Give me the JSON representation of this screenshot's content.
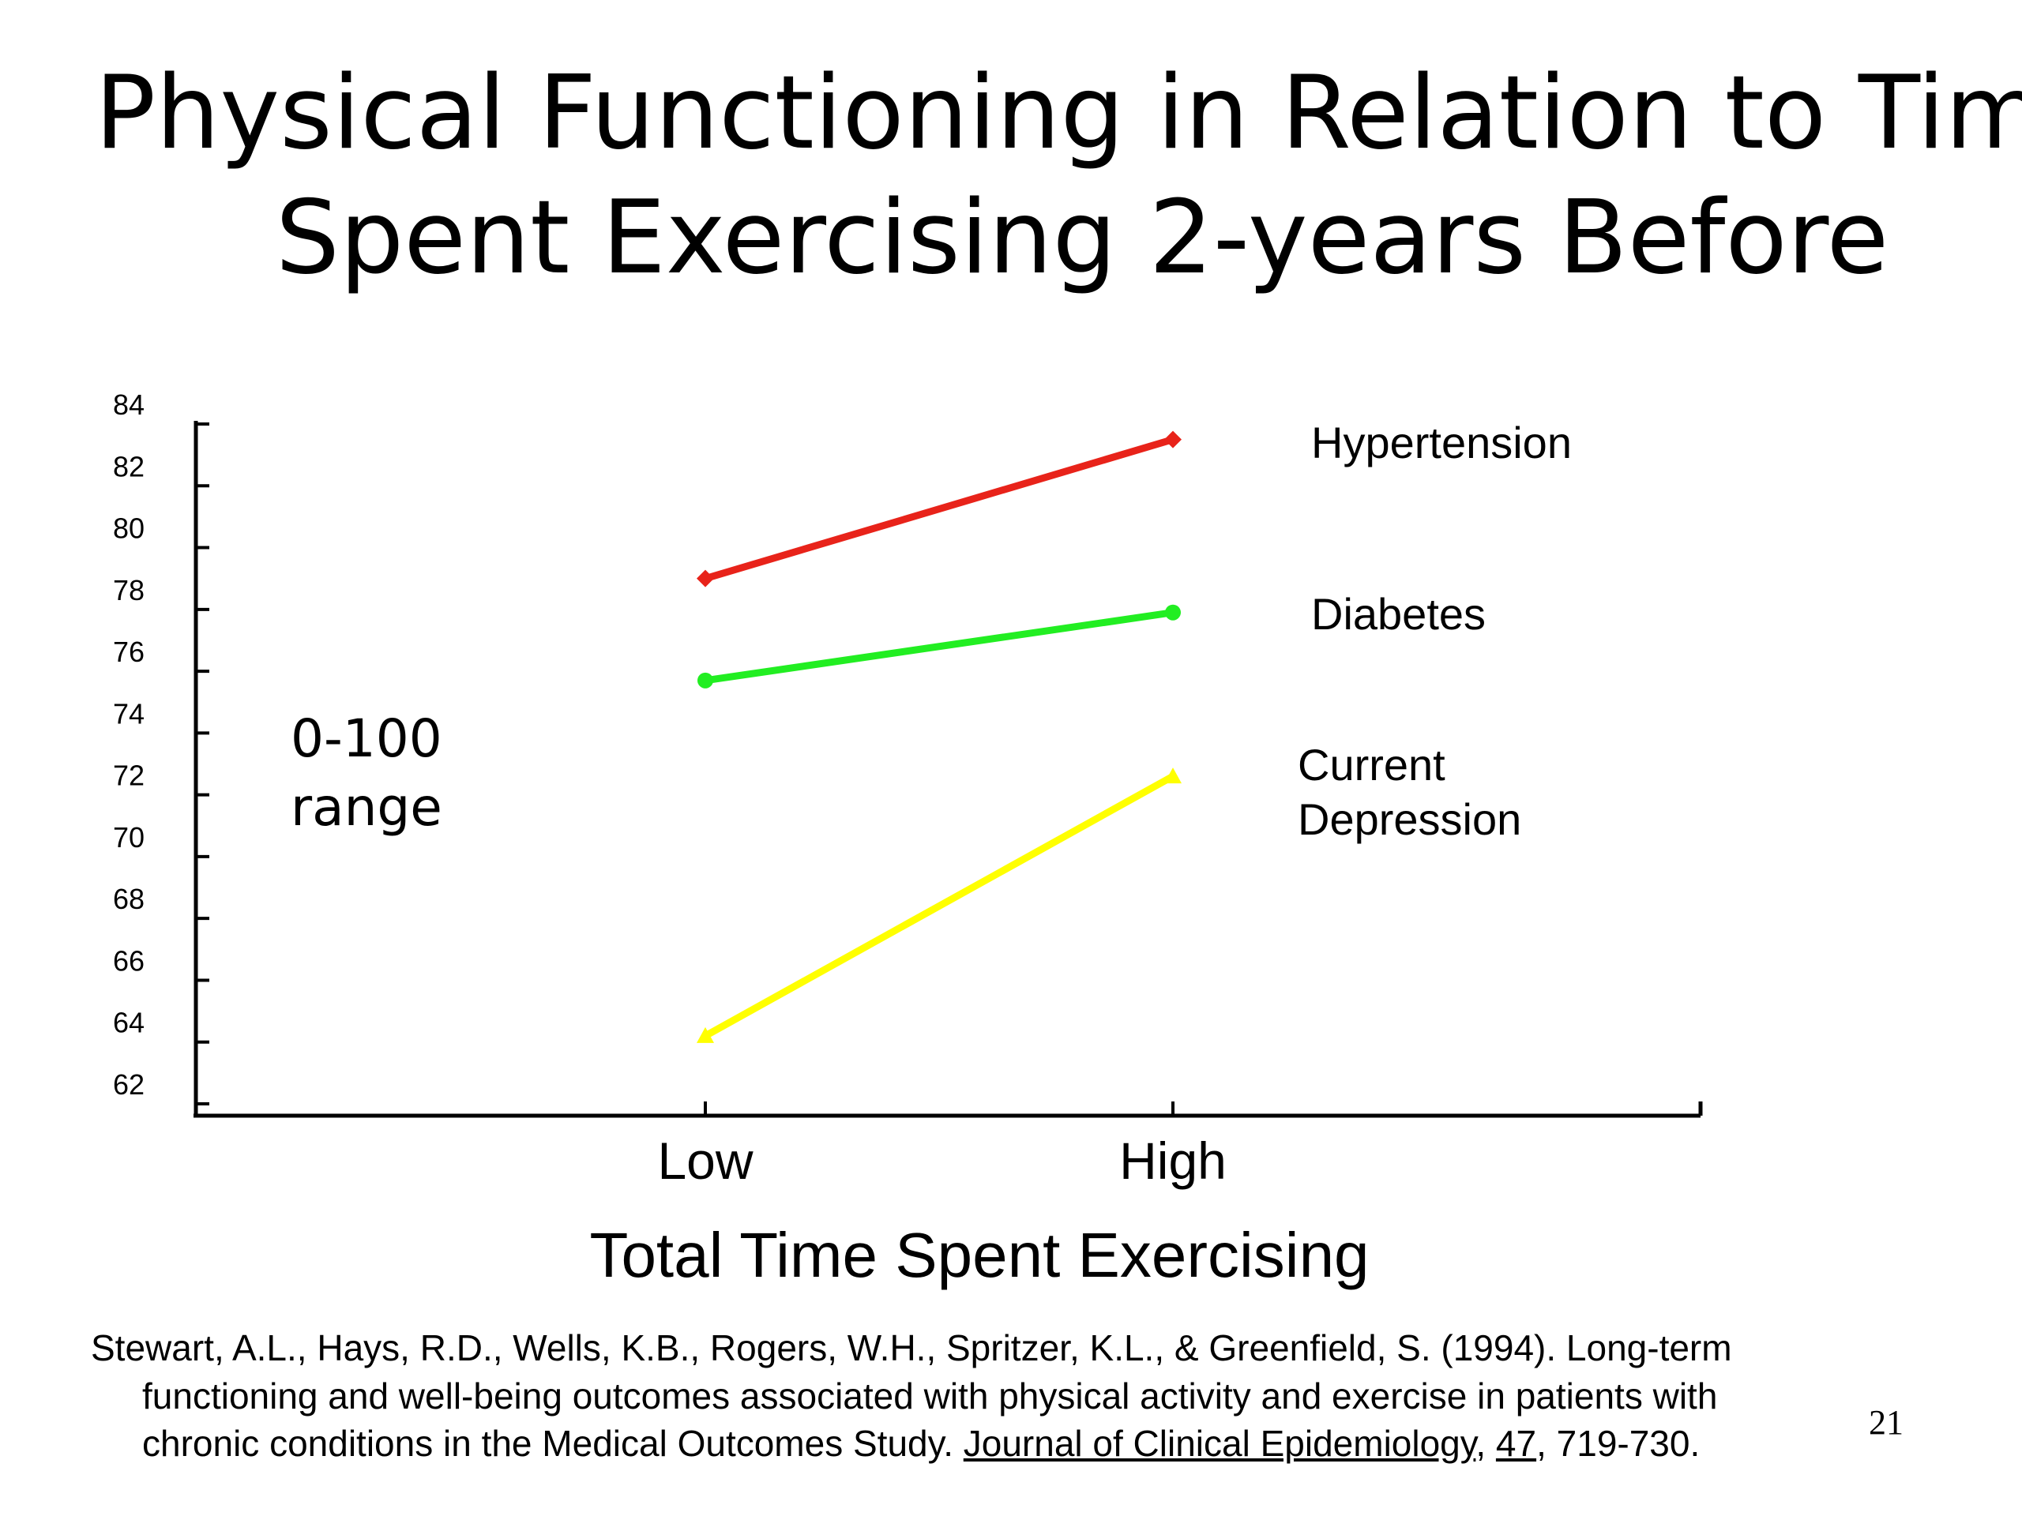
{
  "slide": {
    "title_line1": "Physical Functioning in Relation to Time",
    "title_line2": "Spent Exercising 2-years Before",
    "page_number": "21",
    "citation": {
      "line1": "Stewart, A.L., Hays, R.D., Wells, K.B., Rogers, W.H., Spritzer, K.L., & Greenfield, S.  (1994).  Long-term",
      "line2": "functioning and well-being outcomes associated with physical activity and exercise in patients with",
      "line3_prefix": "chronic conditions in the Medical Outcomes Study.  ",
      "journal": "Journal of Clinical Epidemiology",
      "sep1": ", ",
      "volume": "47",
      "pages": ", 719-730."
    }
  },
  "chart_data": {
    "type": "line",
    "title": "",
    "xlabel": "Total Time Spent Exercising",
    "ylabel": "",
    "categories": [
      "Low",
      "High"
    ],
    "ylim": [
      62,
      84
    ],
    "yticks": [
      84,
      82,
      80,
      78,
      76,
      74,
      72,
      70,
      68,
      66,
      64,
      62
    ],
    "grid": false,
    "annotation": {
      "line1": "0-100",
      "line2": "range"
    },
    "series": [
      {
        "name": "Hypertension",
        "values": [
          79.0,
          83.5
        ],
        "color": "#e8231a",
        "marker": "diamond"
      },
      {
        "name": "Diabetes",
        "values": [
          75.7,
          77.9
        ],
        "color": "#22ee22",
        "marker": "circle"
      },
      {
        "name": "Current Depression",
        "label_lines": [
          "Current",
          "Depression"
        ],
        "values": [
          64.2,
          72.6
        ],
        "color": "#ffff00",
        "marker": "triangle"
      }
    ]
  }
}
